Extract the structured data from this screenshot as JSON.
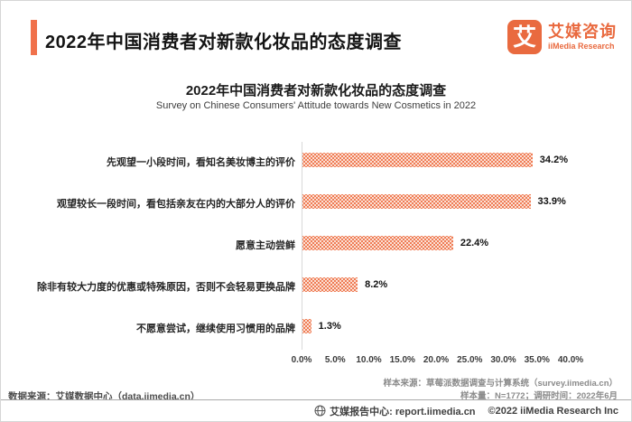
{
  "header": {
    "title": "2022年中国消费者对新款化妆品的态度调查",
    "accent_color": "#F0714B",
    "logo": {
      "glyph": "艾",
      "name_cn": "艾媒咨询",
      "name_en": "iiMedia Research",
      "brand_color": "#E96A3F"
    }
  },
  "chart_data": {
    "type": "bar",
    "orientation": "horizontal",
    "title": "2022年中国消费者对新款化妆品的态度调查",
    "subtitle": "Survey on Chinese Consumers' Attitude towards New Cosmetics in 2022",
    "categories": [
      "先观望一小段时间，看知名美妆博主的评价",
      "观望较长一段时间，看包括亲友在内的大部分人的评价",
      "愿意主动尝鲜",
      "除非有较大力度的优惠或特殊原因，否则不会轻易更换品牌",
      "不愿意尝试，继续使用习惯用的品牌"
    ],
    "values": [
      34.2,
      33.9,
      22.4,
      8.2,
      1.3
    ],
    "value_labels": [
      "34.2%",
      "33.9%",
      "22.4%",
      "8.2%",
      "1.3%"
    ],
    "x_ticks": [
      "0.0%",
      "5.0%",
      "10.0%",
      "15.0%",
      "20.0%",
      "25.0%",
      "30.0%",
      "35.0%",
      "40.0%"
    ],
    "xlim": [
      0,
      40
    ],
    "grid": false,
    "legend": "none",
    "bar_pattern_color": "#EF7C55",
    "bar_bg_color": "#FDEEE6"
  },
  "notes": {
    "sample_source": "样本来源：草莓派数据调查与计算系统（survey.iimedia.cn）",
    "sample_size": "样本量：N=1772；调研时间：2022年6月",
    "data_source": "数据来源：艾媒数据中心（data.iimedia.cn）"
  },
  "footer": {
    "report_center": "艾媒报告中心: report.iimedia.cn",
    "copyright": "©2022  iiMedia Research Inc"
  }
}
